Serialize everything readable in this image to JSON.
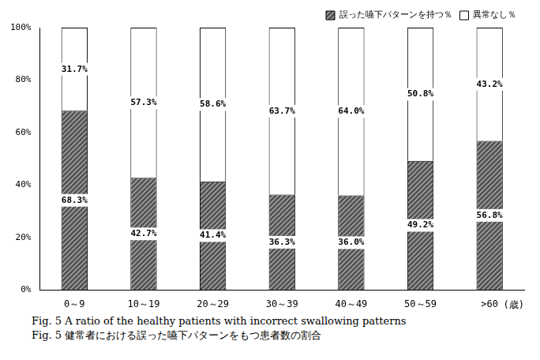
{
  "chart_data": {
    "type": "bar",
    "title": "Fig. 5  A ratio of the healthy patients with incorrect swallowing patterns",
    "subtitle": "Fig. 5  健常者における誤った嚥下パターンをもつ患者数の割合",
    "x_label": "(歳)",
    "categories": [
      "0～9",
      "10～19",
      "20～29",
      "30～39",
      "40～49",
      "50～59",
      ">60"
    ],
    "series": [
      {
        "name": "誤った嚥下パターンを持つ％",
        "color": "#555555",
        "values": [
          68.3,
          42.7,
          41.4,
          36.3,
          36.0,
          49.2,
          56.8
        ],
        "value_labels": [
          "68.3%",
          "42.7%",
          "41.4%",
          "36.3%",
          "36.0%",
          "49.2%",
          "56.8%"
        ]
      },
      {
        "name": "異常なし％",
        "color": "#ffffff",
        "values": [
          31.7,
          57.3,
          58.6,
          63.7,
          64.0,
          50.8,
          43.2
        ],
        "value_labels": [
          "31.7%",
          "57.3%",
          "58.6%",
          "63.7%",
          "64.0%",
          "50.8%",
          "43.2%"
        ]
      }
    ],
    "stacked": true,
    "ylim": [
      0,
      100
    ],
    "yticks": [
      {
        "value": 0,
        "label": "0%"
      },
      {
        "value": 20,
        "label": "20%"
      },
      {
        "value": 40,
        "label": "40%"
      },
      {
        "value": 60,
        "label": "60%"
      },
      {
        "value": 80,
        "label": "80%"
      },
      {
        "value": 100,
        "label": "100%"
      }
    ],
    "grid": false,
    "legend": "top-right",
    "data_labels": true
  }
}
